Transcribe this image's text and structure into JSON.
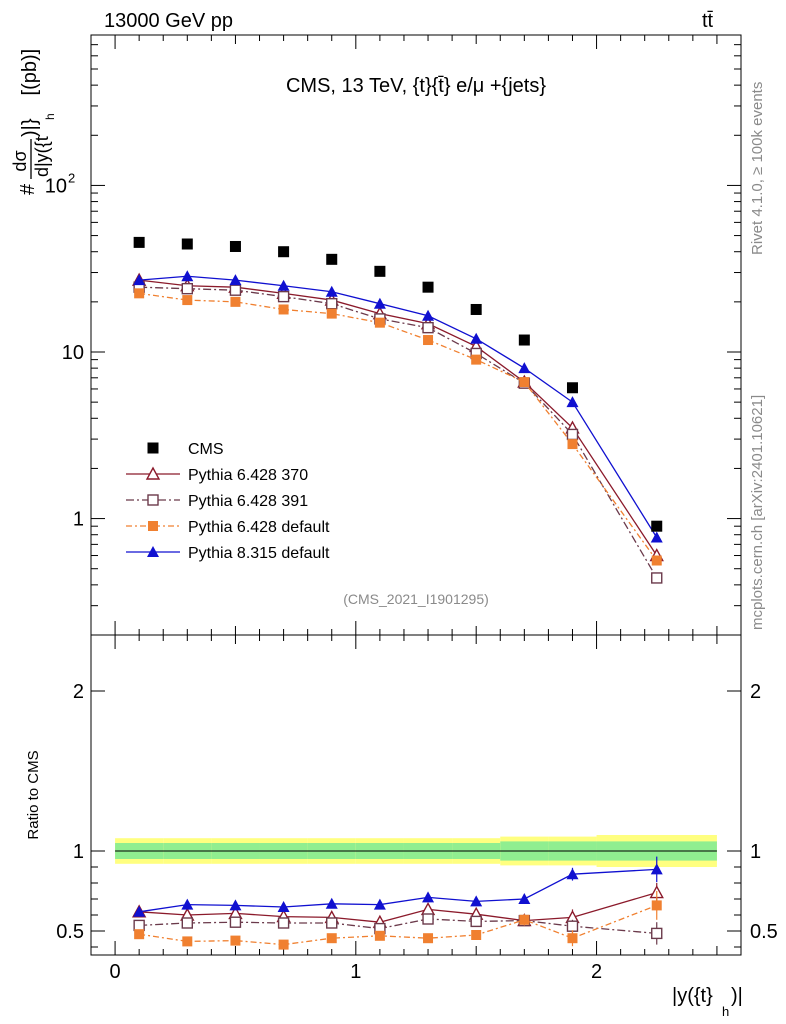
{
  "header": {
    "beam_label": "13000 GeV pp",
    "process_label": "tt̄",
    "rivet_label": "Rivet 4.1.0, ≥ 100k events",
    "source_label": "mcplots.cern.ch [arXiv:2401.10621]"
  },
  "chart_data": {
    "type": "scatter",
    "title": "CMS, 13 TeV, {t}{t̄} e/μ +{jets}",
    "analysis_id": "(CMS_2021_I1901295)",
    "ylabel_main_parts": [
      "#",
      "dσ",
      "d|y({t",
      "h",
      ")|}",
      " [(pb)]"
    ],
    "ylabel_main": "#dσ/d|y({t_h)|} [(pb)]",
    "ylabel_ratio": "Ratio to CMS",
    "xlabel_parts": [
      "|y({t}",
      "h",
      ")|"
    ],
    "xlabel": "|y({t}_h)|",
    "xlim": [
      -0.1,
      2.6
    ],
    "ylim_main": [
      0.2,
      800
    ],
    "ylim_ratio": [
      0.35,
      2.35
    ],
    "x_ticks": [
      {
        "v": 0,
        "label": "0"
      },
      {
        "v": 1,
        "label": "1"
      },
      {
        "v": 2,
        "label": "2"
      }
    ],
    "y_ticks_main": [
      {
        "v": 100,
        "label": "10",
        "sup": "2"
      },
      {
        "v": 10,
        "label": "10",
        "sup": ""
      },
      {
        "v": 1,
        "label": "1",
        "sup": ""
      }
    ],
    "y_ticks_ratio": [
      {
        "v": 2,
        "label": "2"
      },
      {
        "v": 1,
        "label": "1"
      },
      {
        "v": 0.5,
        "label": "0.5"
      }
    ],
    "x": [
      0.1,
      0.3,
      0.5,
      0.7,
      0.9,
      1.1,
      1.3,
      1.5,
      1.7,
      1.9,
      2.25
    ],
    "band_edges": [
      0.0,
      0.2,
      0.4,
      0.6,
      0.8,
      1.0,
      1.2,
      1.4,
      1.6,
      1.8,
      2.0,
      2.5
    ],
    "band_inner": [
      0.05,
      0.05,
      0.05,
      0.05,
      0.05,
      0.05,
      0.05,
      0.05,
      0.06,
      0.06,
      0.06
    ],
    "band_outer": [
      0.08,
      0.08,
      0.08,
      0.08,
      0.08,
      0.08,
      0.08,
      0.08,
      0.09,
      0.09,
      0.1
    ],
    "data": {
      "name": "CMS",
      "color": "#000000",
      "values": [
        45.5,
        44.5,
        43.0,
        40.0,
        36.0,
        30.5,
        24.5,
        18.0,
        11.8,
        6.1,
        0.9
      ]
    },
    "series": [
      {
        "name": "Pythia 6.428 370",
        "color": "#8b1a2b",
        "marker": "triangle-open",
        "dash": "",
        "values": [
          27.0,
          25.0,
          24.5,
          22.5,
          20.5,
          17.0,
          14.8,
          10.8,
          6.6,
          3.5,
          0.6
        ],
        "ratio": [
          0.62,
          0.6,
          0.61,
          0.59,
          0.585,
          0.555,
          0.635,
          0.605,
          0.565,
          0.585,
          0.74
        ],
        "ratio_err": [
          0.01,
          0.01,
          0.012,
          0.012,
          0.015,
          0.02,
          0.022,
          0.025,
          0.03,
          0.05,
          0.06
        ]
      },
      {
        "name": "Pythia 6.428 391",
        "color": "#6b3a4b",
        "marker": "square-open",
        "dash": "8,3,2,3",
        "values": [
          24.5,
          24.0,
          23.5,
          21.5,
          19.5,
          15.8,
          14.0,
          9.8,
          6.5,
          3.2,
          0.44
        ],
        "ratio": [
          0.535,
          0.55,
          0.555,
          0.55,
          0.55,
          0.515,
          0.575,
          0.56,
          0.565,
          0.53,
          0.485
        ],
        "ratio_err": [
          0.01,
          0.012,
          0.012,
          0.012,
          0.015,
          0.018,
          0.02,
          0.022,
          0.03,
          0.04,
          0.07
        ]
      },
      {
        "name": "Pythia 6.428 default",
        "color": "#f08030",
        "marker": "square-filled",
        "dash": "6,3,2,3",
        "values": [
          22.5,
          20.5,
          20.0,
          18.0,
          17.0,
          15.0,
          11.8,
          9.0,
          6.6,
          2.8,
          0.56
        ],
        "ratio": [
          0.48,
          0.435,
          0.44,
          0.415,
          0.455,
          0.47,
          0.455,
          0.475,
          0.57,
          0.455,
          0.66
        ],
        "ratio_err": [
          0.012,
          0.015,
          0.015,
          0.015,
          0.018,
          0.02,
          0.022,
          0.028,
          0.035,
          0.05,
          0.09
        ]
      },
      {
        "name": "Pythia 8.315 default",
        "color": "#1010d0",
        "marker": "triangle-filled",
        "dash": "",
        "values": [
          27.0,
          28.5,
          27.0,
          25.0,
          23.0,
          19.5,
          16.5,
          12.0,
          8.0,
          5.0,
          0.77
        ],
        "ratio": [
          0.62,
          0.665,
          0.66,
          0.65,
          0.67,
          0.665,
          0.71,
          0.685,
          0.7,
          0.855,
          0.885
        ],
        "ratio_err": [
          0.01,
          0.015,
          0.015,
          0.015,
          0.018,
          0.02,
          0.022,
          0.025,
          0.03,
          0.04,
          0.08
        ]
      }
    ]
  }
}
